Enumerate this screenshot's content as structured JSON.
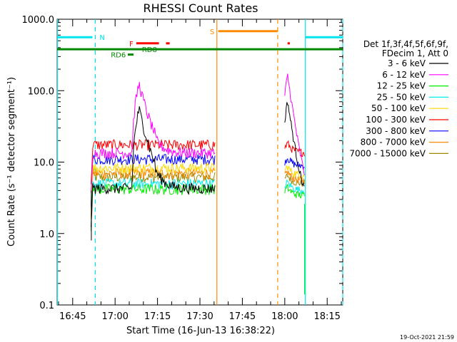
{
  "chart_data": {
    "type": "line",
    "title": "RHESSI Count Rates",
    "xlabel": "Start Time (16-Jun-13 16:38:22)",
    "ylabel": "Count Rate (s⁻¹ detector segment⁻¹)",
    "yscale": "log",
    "ylim": [
      0.1,
      1000
    ],
    "xlim_minutes_after_16_30": [
      9.5,
      110.5
    ],
    "x_ticks": [
      "16:45",
      "17:00",
      "17:15",
      "17:30",
      "17:45",
      "18:00",
      "18:15"
    ],
    "y_ticks": [
      "0.1",
      "1.0",
      "10.0",
      "100.0",
      "1000.0"
    ],
    "legend_header": [
      "Det 1f,3f,4f,5f,6f,9f,",
      "FDecim 1, Att 0"
    ],
    "legend_position": "right",
    "series": [
      {
        "name": "3 - 6 keV",
        "color": "#000000",
        "base": 4.3,
        "peak": 55,
        "tail2": 2.6
      },
      {
        "name": "6 - 12 keV",
        "color": "#ff00ff",
        "base": 13.5,
        "peak": 125,
        "tail2": 3.3
      },
      {
        "name": "12 - 25 keV",
        "color": "#00ee00",
        "base": 4.2,
        "peak": 4.2,
        "tail2": 3.4
      },
      {
        "name": "25 - 50 keV",
        "color": "#00eeee",
        "base": 5.0,
        "peak": 5.0,
        "tail2": 4.0
      },
      {
        "name": "50 - 100 keV",
        "color": "#ffd700",
        "base": 8.3,
        "peak": 8.3,
        "tail2": 6.5
      },
      {
        "name": "100 - 300 keV",
        "color": "#ff0000",
        "base": 17.5,
        "peak": 17.5,
        "tail2": 13.5
      },
      {
        "name": "300 - 800 keV",
        "color": "#0000ff",
        "base": 11.0,
        "peak": 11.0,
        "tail2": 8.8
      },
      {
        "name": "800 - 7000 keV",
        "color": "#ff8800",
        "base": 7.0,
        "peak": 7.0,
        "tail2": 5.5
      },
      {
        "name": "7000 - 15000 keV",
        "color": "#998800",
        "base": 6.2,
        "peak": 6.2,
        "tail2": 5.0
      }
    ],
    "segments": [
      {
        "start": 21.5,
        "end": 65.5
      },
      {
        "start": 90.0,
        "end": 97.0
      }
    ],
    "flags": [
      {
        "label": "N",
        "color": "#00e5ee"
      },
      {
        "label": "S",
        "color": "#ff8c00"
      },
      {
        "label": "F",
        "color": "#ff0000"
      },
      {
        "label": "RD8",
        "color": "#008800"
      },
      {
        "label": "RD6",
        "color": "#008800"
      }
    ],
    "timestamp": "19-Oct-2021 21:59"
  }
}
